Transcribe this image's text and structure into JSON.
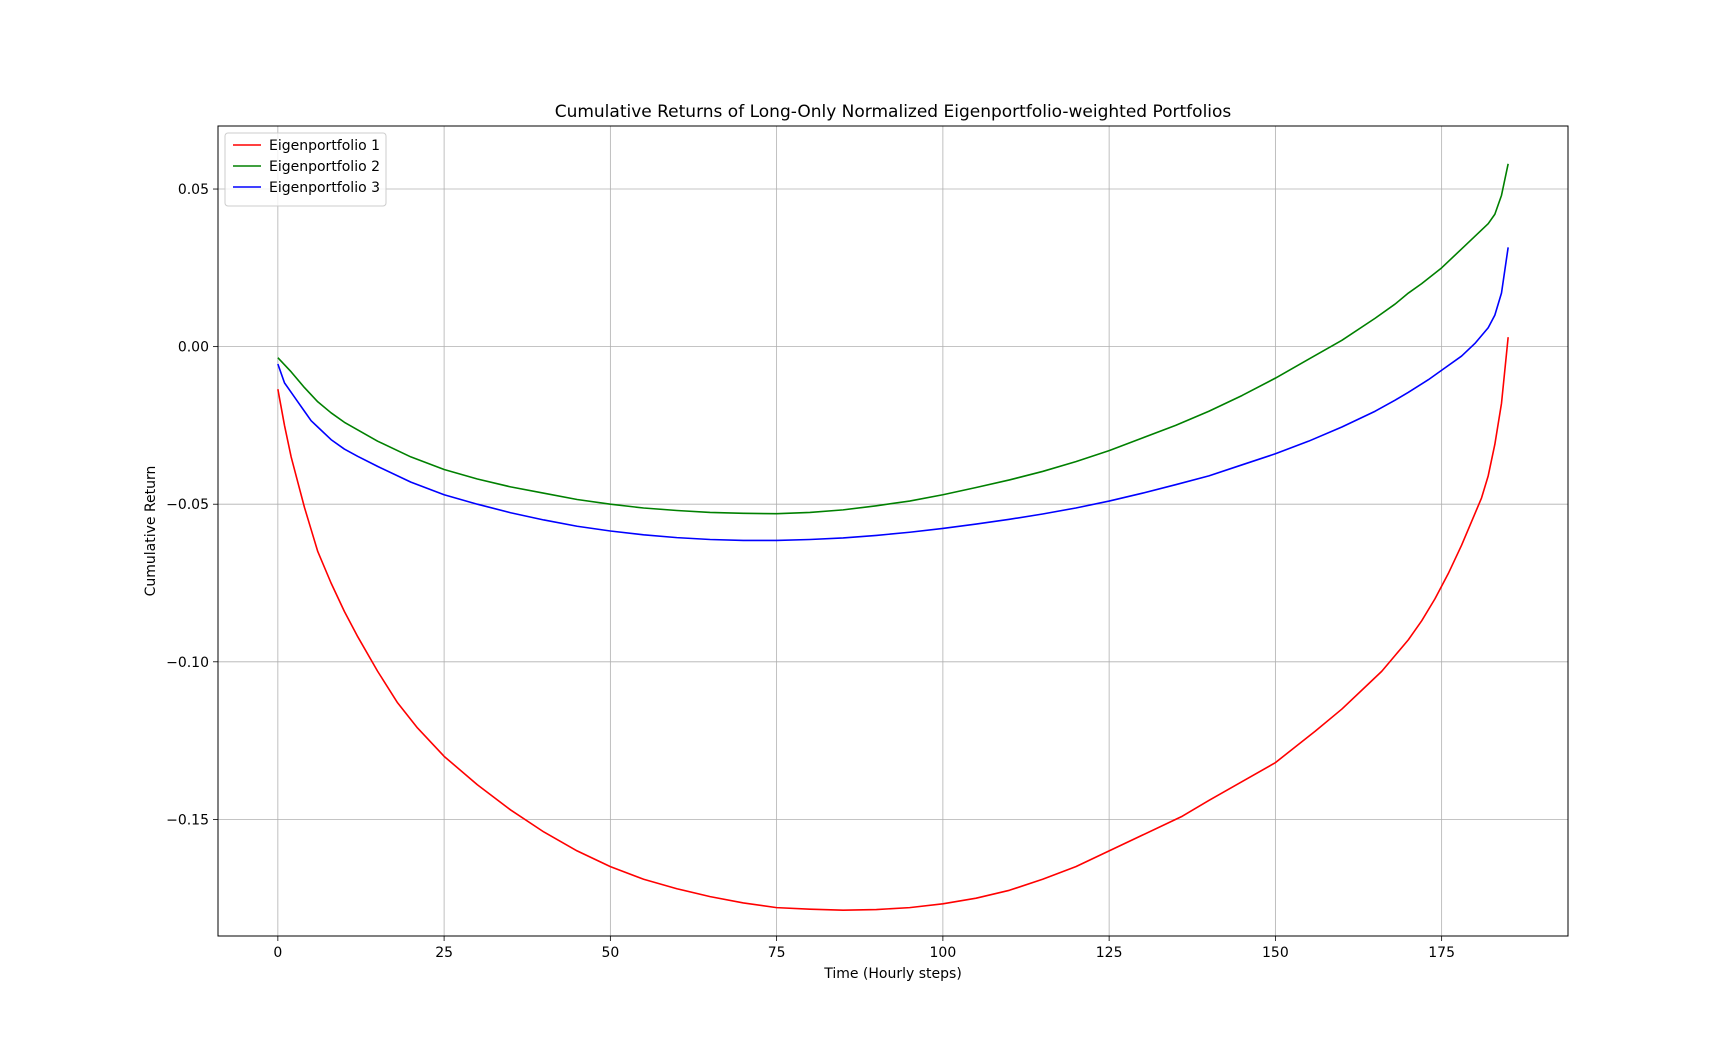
{
  "chart_data": {
    "type": "line",
    "title": "Cumulative Returns of Long-Only Normalized Eigenportfolio-weighted Portfolios",
    "xlabel": "Time (Hourly steps)",
    "ylabel": "Cumulative Return",
    "xlim": [
      -9,
      194
    ],
    "ylim": [
      -0.187,
      0.07
    ],
    "x_ticks": [
      0,
      25,
      50,
      75,
      100,
      125,
      150,
      175
    ],
    "y_ticks": [
      0.05,
      0.0,
      -0.05,
      -0.1,
      -0.15
    ],
    "y_tick_labels": [
      "0.05",
      "0.00",
      "−0.05",
      "−0.10",
      "−0.15"
    ],
    "grid": true,
    "legend_position": "top-left",
    "series": [
      {
        "name": "Eigenportfolio 1",
        "color": "#ff0000",
        "x": [
          0,
          1,
          2,
          3,
          4,
          5,
          6,
          8,
          10,
          12,
          15,
          18,
          21,
          25,
          30,
          35,
          40,
          45,
          50,
          55,
          60,
          65,
          70,
          75,
          80,
          85,
          90,
          95,
          100,
          105,
          110,
          115,
          120,
          125,
          130,
          136,
          140,
          145,
          150,
          153,
          156,
          160,
          164,
          166,
          168,
          170,
          172,
          174,
          176,
          178,
          180,
          181,
          182,
          183,
          184,
          185
        ],
        "y": [
          -0.0135,
          -0.025,
          -0.035,
          -0.043,
          -0.051,
          -0.058,
          -0.065,
          -0.075,
          -0.084,
          -0.092,
          -0.103,
          -0.113,
          -0.121,
          -0.13,
          -0.139,
          -0.147,
          -0.154,
          -0.16,
          -0.165,
          -0.169,
          -0.172,
          -0.1745,
          -0.1765,
          -0.178,
          -0.1785,
          -0.1788,
          -0.1786,
          -0.178,
          -0.1768,
          -0.175,
          -0.1725,
          -0.169,
          -0.165,
          -0.16,
          -0.155,
          -0.149,
          -0.144,
          -0.138,
          -0.132,
          -0.127,
          -0.122,
          -0.115,
          -0.107,
          -0.103,
          -0.098,
          -0.093,
          -0.087,
          -0.08,
          -0.072,
          -0.063,
          -0.053,
          -0.048,
          -0.041,
          -0.031,
          -0.018,
          0.003
        ]
      },
      {
        "name": "Eigenportfolio 2",
        "color": "#008000",
        "x": [
          0,
          2,
          4,
          6,
          8,
          10,
          15,
          20,
          25,
          30,
          35,
          40,
          45,
          50,
          55,
          60,
          65,
          70,
          75,
          80,
          85,
          90,
          95,
          100,
          105,
          110,
          115,
          120,
          125,
          130,
          135,
          140,
          145,
          150,
          155,
          160,
          165,
          168,
          170,
          172,
          175,
          178,
          180,
          182,
          183,
          184,
          185
        ],
        "y": [
          -0.0035,
          -0.008,
          -0.013,
          -0.0175,
          -0.021,
          -0.024,
          -0.03,
          -0.035,
          -0.039,
          -0.042,
          -0.0445,
          -0.0465,
          -0.0485,
          -0.05,
          -0.0512,
          -0.052,
          -0.0526,
          -0.0529,
          -0.053,
          -0.0526,
          -0.0518,
          -0.0505,
          -0.049,
          -0.047,
          -0.0447,
          -0.0423,
          -0.0396,
          -0.0365,
          -0.033,
          -0.029,
          -0.025,
          -0.0205,
          -0.0155,
          -0.01,
          -0.004,
          0.002,
          0.009,
          0.0135,
          0.017,
          0.02,
          0.025,
          0.031,
          0.035,
          0.039,
          0.042,
          0.048,
          0.058
        ]
      },
      {
        "name": "Eigenportfolio 3",
        "color": "#0000ff",
        "x": [
          0,
          1,
          2,
          3,
          4,
          5,
          6,
          8,
          10,
          12,
          15,
          20,
          25,
          30,
          35,
          40,
          45,
          50,
          55,
          60,
          65,
          70,
          75,
          80,
          85,
          90,
          95,
          100,
          105,
          110,
          115,
          120,
          125,
          130,
          135,
          140,
          145,
          150,
          155,
          160,
          165,
          168,
          170,
          173,
          175,
          178,
          180,
          182,
          183,
          184,
          185
        ],
        "y": [
          -0.0055,
          -0.0115,
          -0.0145,
          -0.0175,
          -0.0205,
          -0.0235,
          -0.0255,
          -0.0295,
          -0.0325,
          -0.0348,
          -0.038,
          -0.043,
          -0.047,
          -0.05,
          -0.0527,
          -0.055,
          -0.057,
          -0.0585,
          -0.0597,
          -0.0606,
          -0.0612,
          -0.0615,
          -0.0615,
          -0.0612,
          -0.0607,
          -0.0599,
          -0.0589,
          -0.0577,
          -0.0563,
          -0.0548,
          -0.0531,
          -0.0512,
          -0.049,
          -0.0465,
          -0.0438,
          -0.041,
          -0.0375,
          -0.034,
          -0.03,
          -0.0255,
          -0.0205,
          -0.017,
          -0.0145,
          -0.0105,
          -0.0075,
          -0.003,
          0.001,
          0.006,
          0.01,
          0.017,
          0.0315
        ]
      }
    ]
  }
}
